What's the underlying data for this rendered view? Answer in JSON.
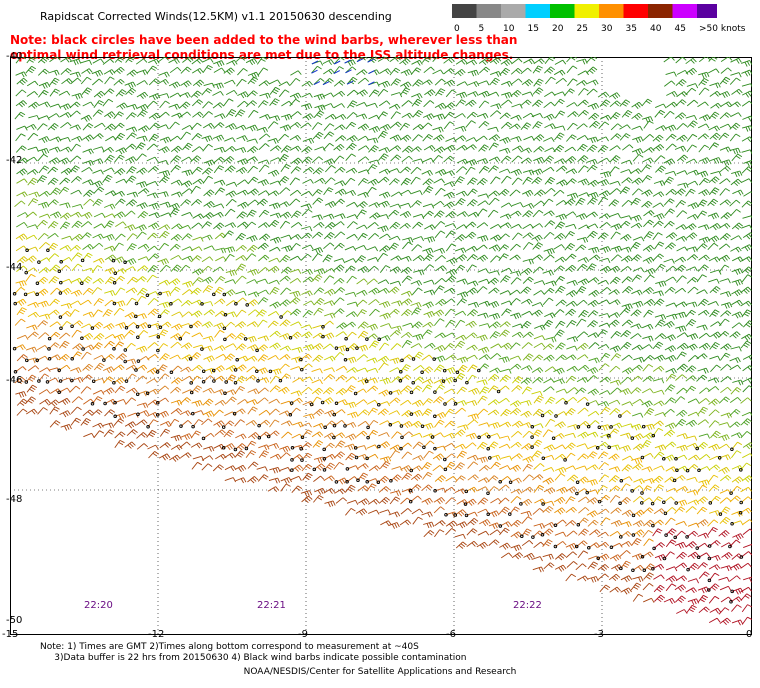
{
  "title": "Rapidscat Corrected Winds(12.5KM) v1.1 20150630 descending",
  "note": "Note: black circles have been added to the wind barbs, wherever less than optimal wind retrieval conditions are met due to the ISS altitude changes.",
  "colorbar": {
    "labels": [
      "0",
      "5",
      "10",
      "15",
      "20",
      "25",
      "30",
      "35",
      "40",
      "45",
      ">50 knots"
    ],
    "colors": [
      "#444444",
      "#888888",
      "#aaaaaa",
      "#00cfff",
      "#00c000",
      "#f0f000",
      "#ff9000",
      "#ff0000",
      "#8b2500",
      "#cc00ff",
      "#5b00a0"
    ]
  },
  "map": {
    "lon_ticks": [
      "-15",
      "-12",
      "-9",
      "-6",
      "-3",
      "0"
    ],
    "lat_ticks": [
      "-40",
      "-42",
      "-44",
      "-46",
      "-48",
      "-50"
    ],
    "times": [
      "22:20",
      "22:21",
      "22:22"
    ]
  },
  "footnote": "Note: 1) Times are GMT 2)Times along bottom correspond to measurement at ~40S\n     3)Data buffer is 22 hrs from 20150630 4) Black wind barbs indicate possible contamination",
  "credit": "NOAA/NESDIS/Center for Satellite Applications and Research"
}
